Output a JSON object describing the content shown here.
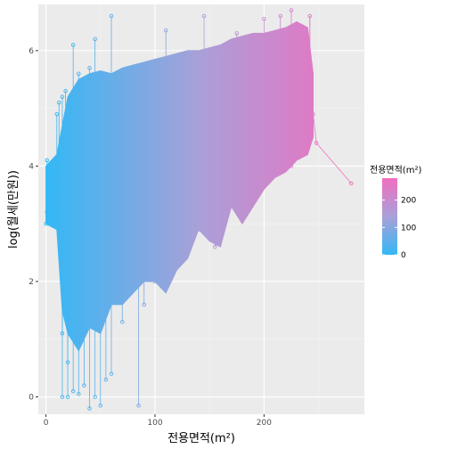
{
  "chart_data": {
    "type": "line",
    "title": "",
    "xlabel": "전용면적(m²)",
    "ylabel": "log(월세(만원))",
    "xlim": [
      -7,
      292
    ],
    "ylim": [
      -0.3,
      6.8
    ],
    "x_ticks": [
      0,
      100,
      200
    ],
    "y_ticks": [
      0,
      2,
      4,
      6
    ],
    "grid": true,
    "background": "#ebebeb",
    "color_scale": {
      "variable": "전용면적(m²)",
      "low_color": "#33b8f5",
      "mid_color": "#a9a0d8",
      "high_color": "#f06ec0",
      "range": [
        0,
        280
      ],
      "breaks": [
        0,
        100,
        200
      ],
      "legend_position": "right"
    },
    "envelope": {
      "x": [
        0,
        10,
        15,
        20,
        30,
        40,
        50,
        60,
        70,
        80,
        90,
        100,
        110,
        120,
        130,
        140,
        150,
        160,
        170,
        180,
        190,
        200,
        210,
        220,
        230,
        240,
        245
      ],
      "upper": [
        4.0,
        4.2,
        4.7,
        5.2,
        5.5,
        5.6,
        5.65,
        5.6,
        5.7,
        5.75,
        5.8,
        5.85,
        5.9,
        5.95,
        6.0,
        6.0,
        6.05,
        6.1,
        6.2,
        6.25,
        6.3,
        6.3,
        6.35,
        6.4,
        6.5,
        6.4,
        5.6
      ],
      "lower": [
        3.0,
        2.9,
        1.5,
        1.1,
        0.8,
        1.2,
        1.1,
        1.6,
        1.6,
        1.8,
        2.0,
        2.0,
        1.8,
        2.2,
        2.4,
        2.9,
        2.7,
        2.6,
        3.3,
        3.0,
        3.3,
        3.6,
        3.8,
        3.9,
        4.1,
        4.2,
        4.5
      ]
    },
    "points": [
      {
        "x": 0,
        "y": 3.0
      },
      {
        "x": 1,
        "y": 3.2
      },
      {
        "x": 2,
        "y": 3.9
      },
      {
        "x": 1,
        "y": 4.1
      },
      {
        "x": 3,
        "y": 3.7
      },
      {
        "x": 5,
        "y": 3.1
      },
      {
        "x": 10,
        "y": 4.9
      },
      {
        "x": 12,
        "y": 5.1
      },
      {
        "x": 15,
        "y": 5.2
      },
      {
        "x": 18,
        "y": 5.3
      },
      {
        "x": 25,
        "y": 6.1
      },
      {
        "x": 30,
        "y": 5.6
      },
      {
        "x": 40,
        "y": 5.7
      },
      {
        "x": 45,
        "y": 6.2
      },
      {
        "x": 60,
        "y": 6.6
      },
      {
        "x": 110,
        "y": 6.35
      },
      {
        "x": 145,
        "y": 6.6
      },
      {
        "x": 160,
        "y": 6.0
      },
      {
        "x": 175,
        "y": 6.3
      },
      {
        "x": 192,
        "y": 6.2
      },
      {
        "x": 200,
        "y": 6.55
      },
      {
        "x": 215,
        "y": 6.6
      },
      {
        "x": 225,
        "y": 6.7
      },
      {
        "x": 242,
        "y": 6.6
      },
      {
        "x": 242,
        "y": 5.4
      },
      {
        "x": 245,
        "y": 4.9
      },
      {
        "x": 248,
        "y": 4.4
      },
      {
        "x": 280,
        "y": 3.7
      },
      {
        "x": 15,
        "y": 0.0
      },
      {
        "x": 20,
        "y": 0.0
      },
      {
        "x": 25,
        "y": 0.1
      },
      {
        "x": 30,
        "y": 0.05
      },
      {
        "x": 35,
        "y": 0.2
      },
      {
        "x": 40,
        "y": -0.2
      },
      {
        "x": 45,
        "y": 0.0
      },
      {
        "x": 50,
        "y": -0.15
      },
      {
        "x": 55,
        "y": 0.3
      },
      {
        "x": 60,
        "y": 0.4
      },
      {
        "x": 85,
        "y": -0.15
      },
      {
        "x": 15,
        "y": 1.1
      },
      {
        "x": 20,
        "y": 0.6
      },
      {
        "x": 25,
        "y": 1.4
      },
      {
        "x": 35,
        "y": 1.3
      },
      {
        "x": 65,
        "y": 1.8
      },
      {
        "x": 90,
        "y": 1.6
      },
      {
        "x": 100,
        "y": 2.0
      },
      {
        "x": 120,
        "y": 2.3
      },
      {
        "x": 140,
        "y": 2.9
      },
      {
        "x": 170,
        "y": 3.3
      },
      {
        "x": 180,
        "y": 3.2
      },
      {
        "x": 210,
        "y": 3.9
      },
      {
        "x": 225,
        "y": 4.0
      },
      {
        "x": 235,
        "y": 4.3
      },
      {
        "x": 70,
        "y": 1.3
      },
      {
        "x": 155,
        "y": 2.6
      },
      {
        "x": 195,
        "y": 3.5
      }
    ]
  }
}
